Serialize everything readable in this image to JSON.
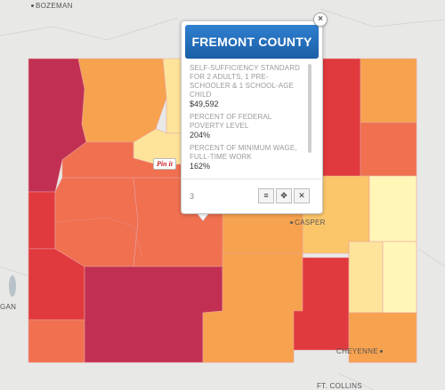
{
  "popup": {
    "title": "FREMONT COUNTY",
    "close_label": "×",
    "fields": [
      {
        "label": "SELF-SUFFICIENCY STANDARD FOR 2 ADULTS, 1 PRE-SCHOOLER & 1 SCHOOL-AGE CHILD",
        "value": "$49,592"
      },
      {
        "label": "PERCENT OF FEDERAL POVERTY LEVEL",
        "value": "204%"
      },
      {
        "label": "PERCENT OF MINIMUM WAGE, FULL-TIME WORK",
        "value": "162%"
      }
    ],
    "page": "3",
    "list_icon": "≡",
    "move_icon": "✥",
    "close_icon": "✕"
  },
  "pin_label": "Pin it",
  "cities": {
    "bozeman": "BOZEMAN",
    "casper": "CASPER",
    "cheyenne": "CHEYENNE",
    "gan": "GAN",
    "ft_collins": "FT. COLLINS"
  },
  "legend_colors": {
    "dark_red": "#c13052",
    "red": "#e0393e",
    "orange_red": "#f07050",
    "orange": "#f7a24e",
    "light_orange": "#fbc66a",
    "yellow": "#fde49a",
    "pale_yellow": "#fff6b8"
  }
}
